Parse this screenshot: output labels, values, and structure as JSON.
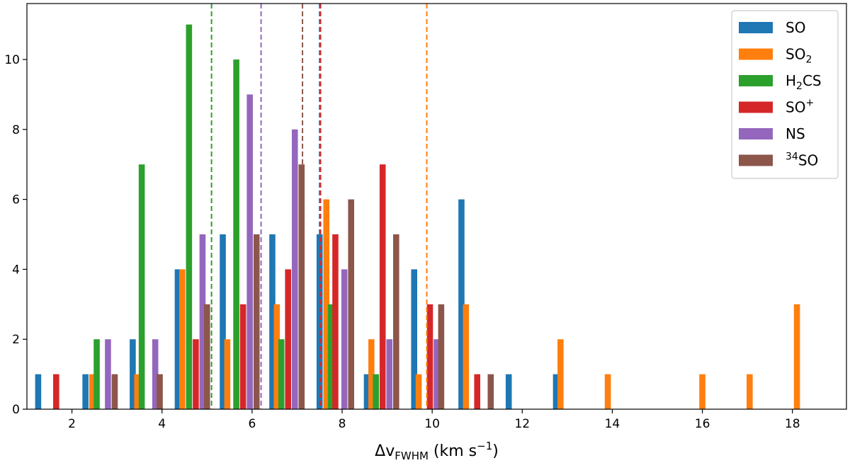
{
  "chart_data": {
    "type": "bar",
    "xlabel": {
      "base": "Δv",
      "sub": "FWHM",
      "unit_pre": " (km s",
      "unit_sup": "−1",
      "unit_post": ")"
    },
    "ylabel": "",
    "xlim": [
      1.0,
      19.2
    ],
    "ylim": [
      0,
      11.6
    ],
    "xticks": [
      2,
      4,
      6,
      8,
      10,
      12,
      14,
      16,
      18
    ],
    "yticks": [
      0,
      2,
      4,
      6,
      8,
      10
    ],
    "grid": false,
    "legend_position": "top-right",
    "series": [
      {
        "name": "SO",
        "label": {
          "base": "SO",
          "sub": "",
          "sup": ""
        },
        "color": "#1f77b4",
        "points": [
          [
            1.25,
            1
          ],
          [
            2.3,
            1
          ],
          [
            3.35,
            2
          ],
          [
            4.35,
            4
          ],
          [
            5.35,
            5
          ],
          [
            6.45,
            5
          ],
          [
            7.5,
            5
          ],
          [
            8.55,
            1
          ],
          [
            9.6,
            4
          ],
          [
            10.65,
            6
          ],
          [
            11.7,
            1
          ],
          [
            12.75,
            1
          ]
        ],
        "median": 7.5
      },
      {
        "name": "SO2",
        "label": {
          "base": "SO",
          "sub": "2",
          "sup": ""
        },
        "color": "#ff7f0e",
        "points": [
          [
            2.45,
            1
          ],
          [
            3.45,
            1
          ],
          [
            4.45,
            4
          ],
          [
            5.45,
            2
          ],
          [
            6.55,
            3
          ],
          [
            7.65,
            6
          ],
          [
            8.65,
            2
          ],
          [
            9.7,
            1
          ],
          [
            10.75,
            3
          ],
          [
            12.85,
            2
          ],
          [
            13.9,
            1
          ],
          [
            16.0,
            1
          ],
          [
            17.05,
            1
          ],
          [
            18.1,
            3
          ]
        ],
        "median": 9.88
      },
      {
        "name": "H2CS",
        "label": {
          "base": "H",
          "sub": "2",
          "sup": "",
          "suffix": "CS"
        },
        "color": "#2ca02c",
        "points": [
          [
            2.55,
            2
          ],
          [
            3.55,
            7
          ],
          [
            4.6,
            11
          ],
          [
            5.65,
            10
          ],
          [
            6.65,
            2
          ],
          [
            7.75,
            3
          ],
          [
            8.75,
            1
          ]
        ],
        "median": 5.1
      },
      {
        "name": "SO+",
        "label": {
          "base": "SO",
          "sub": "",
          "sup": "+"
        },
        "color": "#d62728",
        "points": [
          [
            1.65,
            1
          ],
          [
            4.75,
            2
          ],
          [
            5.8,
            3
          ],
          [
            6.8,
            4
          ],
          [
            7.85,
            5
          ],
          [
            8.9,
            7
          ],
          [
            9.95,
            3
          ],
          [
            11.0,
            1
          ]
        ],
        "median": 7.52
      },
      {
        "name": "NS",
        "label": {
          "base": "NS",
          "sub": "",
          "sup": ""
        },
        "color": "#9467bd",
        "points": [
          [
            2.8,
            2
          ],
          [
            3.85,
            2
          ],
          [
            4.9,
            5
          ],
          [
            5.95,
            9
          ],
          [
            6.95,
            8
          ],
          [
            8.05,
            4
          ],
          [
            9.05,
            2
          ],
          [
            10.1,
            2
          ]
        ],
        "median": 6.2
      },
      {
        "name": "34SO",
        "label": {
          "base": "SO",
          "sub": "",
          "sup": "",
          "presup": "34"
        },
        "color": "#8c564b",
        "points": [
          [
            2.95,
            1
          ],
          [
            3.95,
            1
          ],
          [
            5.0,
            3
          ],
          [
            6.1,
            5
          ],
          [
            7.1,
            7
          ],
          [
            8.2,
            6
          ],
          [
            9.2,
            5
          ],
          [
            10.2,
            3
          ],
          [
            11.3,
            1
          ]
        ],
        "median": 7.12
      }
    ]
  }
}
